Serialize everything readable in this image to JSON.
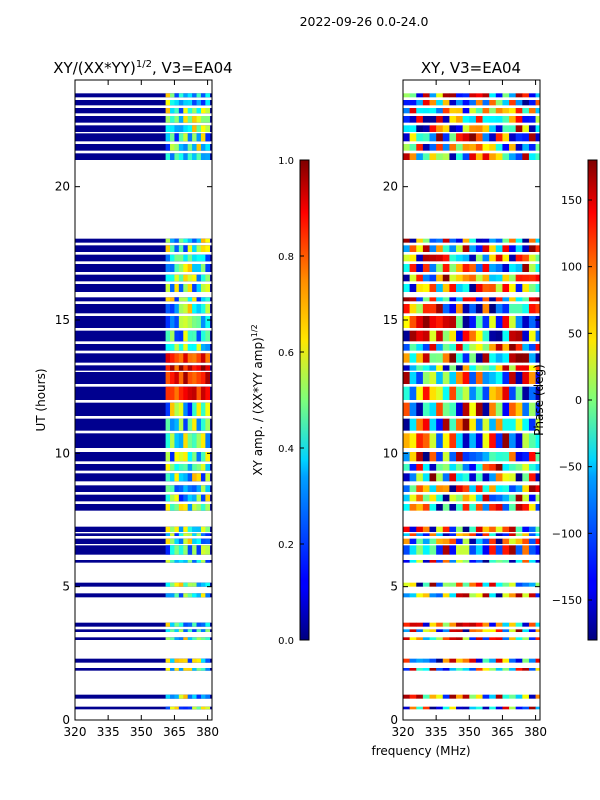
{
  "figure_title": "2022-09-26 0.0-24.0",
  "shared_xlabel": "frequency (MHz)",
  "chart_data": [
    {
      "type": "heatmap",
      "title": "XY/(XX*YY)",
      "title_sup": "1/2",
      "title_suffix": ", V3=EA04",
      "xlabel": "",
      "ylabel": "UT (hours)",
      "xlim": [
        320,
        382
      ],
      "ylim": [
        0,
        24
      ],
      "xticks": [
        320,
        335,
        350,
        365,
        380
      ],
      "yticks": [
        0,
        5,
        10,
        15,
        20
      ],
      "colorbar": {
        "label": "XY amp. / (XX*YY amp)",
        "label_sup": "1/2",
        "range": [
          0.0,
          1.0
        ],
        "ticks": [
          0.0,
          0.2,
          0.4,
          0.6,
          0.8,
          1.0
        ],
        "tick_labels": [
          "0.0",
          "0.2",
          "0.4",
          "0.6",
          "0.8",
          "1.0"
        ],
        "colormap": "jet"
      },
      "data_bands_hours": [
        [
          0.4,
          0.5
        ],
        [
          0.8,
          0.95
        ],
        [
          1.85,
          1.95
        ],
        [
          2.15,
          2.3
        ],
        [
          3.0,
          3.1
        ],
        [
          3.3,
          3.4
        ],
        [
          3.5,
          3.65
        ],
        [
          4.6,
          4.75
        ],
        [
          5.0,
          5.15
        ],
        [
          5.9,
          6.0
        ],
        [
          6.2,
          6.55
        ],
        [
          6.6,
          6.8
        ],
        [
          6.9,
          7.0
        ],
        [
          7.05,
          7.25
        ],
        [
          7.85,
          8.1
        ],
        [
          8.2,
          8.45
        ],
        [
          8.55,
          8.8
        ],
        [
          8.95,
          9.25
        ],
        [
          9.35,
          9.6
        ],
        [
          9.7,
          10.05
        ],
        [
          10.2,
          10.75
        ],
        [
          10.85,
          11.3
        ],
        [
          11.4,
          11.9
        ],
        [
          12.0,
          12.5
        ],
        [
          12.6,
          13.05
        ],
        [
          13.1,
          13.3
        ],
        [
          13.4,
          13.75
        ],
        [
          13.85,
          14.1
        ],
        [
          14.2,
          14.6
        ],
        [
          14.7,
          15.15
        ],
        [
          15.25,
          15.6
        ],
        [
          15.7,
          15.85
        ],
        [
          16.05,
          16.35
        ],
        [
          16.45,
          16.7
        ],
        [
          16.8,
          17.1
        ],
        [
          17.2,
          17.45
        ],
        [
          17.55,
          17.8
        ],
        [
          17.9,
          18.05
        ],
        [
          21.0,
          21.25
        ],
        [
          21.35,
          21.6
        ],
        [
          21.7,
          22.0
        ],
        [
          22.05,
          22.3
        ],
        [
          22.4,
          22.65
        ],
        [
          22.75,
          22.95
        ],
        [
          23.05,
          23.25
        ],
        [
          23.35,
          23.5
        ]
      ]
    },
    {
      "type": "heatmap",
      "title": "XY, V3=EA04",
      "xlabel": "frequency (MHz)",
      "ylabel": "",
      "xlim": [
        320,
        382
      ],
      "ylim": [
        0,
        24
      ],
      "xticks": [
        320,
        335,
        350,
        365,
        380
      ],
      "yticks": [
        0,
        5,
        10,
        15,
        20
      ],
      "colorbar": {
        "label": "Phase (deg)",
        "range": [
          -180,
          180
        ],
        "ticks": [
          -150,
          -100,
          -50,
          0,
          50,
          100,
          150
        ],
        "tick_labels": [
          "−150",
          "−100",
          "−50",
          "0",
          "50",
          "100",
          "150"
        ],
        "colormap": "jet"
      },
      "data_bands_hours": [
        [
          0.4,
          0.5
        ],
        [
          0.8,
          0.95
        ],
        [
          1.85,
          1.95
        ],
        [
          2.15,
          2.3
        ],
        [
          3.0,
          3.1
        ],
        [
          3.3,
          3.4
        ],
        [
          3.5,
          3.65
        ],
        [
          4.6,
          4.75
        ],
        [
          5.0,
          5.15
        ],
        [
          5.9,
          6.0
        ],
        [
          6.2,
          6.55
        ],
        [
          6.6,
          6.8
        ],
        [
          6.9,
          7.0
        ],
        [
          7.05,
          7.25
        ],
        [
          7.85,
          8.1
        ],
        [
          8.2,
          8.45
        ],
        [
          8.55,
          8.8
        ],
        [
          8.95,
          9.25
        ],
        [
          9.35,
          9.6
        ],
        [
          9.7,
          10.05
        ],
        [
          10.2,
          10.75
        ],
        [
          10.85,
          11.3
        ],
        [
          11.4,
          11.9
        ],
        [
          12.0,
          12.5
        ],
        [
          12.6,
          13.05
        ],
        [
          13.1,
          13.3
        ],
        [
          13.4,
          13.75
        ],
        [
          13.85,
          14.1
        ],
        [
          14.2,
          14.6
        ],
        [
          14.7,
          15.15
        ],
        [
          15.25,
          15.6
        ],
        [
          15.7,
          15.85
        ],
        [
          16.05,
          16.35
        ],
        [
          16.45,
          16.7
        ],
        [
          16.8,
          17.1
        ],
        [
          17.2,
          17.45
        ],
        [
          17.55,
          17.8
        ],
        [
          17.9,
          18.05
        ],
        [
          21.0,
          21.25
        ],
        [
          21.35,
          21.6
        ],
        [
          21.7,
          22.0
        ],
        [
          22.05,
          22.3
        ],
        [
          22.4,
          22.65
        ],
        [
          22.75,
          22.95
        ],
        [
          23.05,
          23.25
        ],
        [
          23.35,
          23.5
        ]
      ]
    }
  ]
}
